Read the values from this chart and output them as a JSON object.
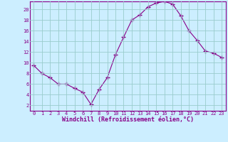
{
  "x": [
    0,
    1,
    2,
    3,
    4,
    5,
    6,
    7,
    8,
    9,
    10,
    11,
    12,
    13,
    14,
    15,
    16,
    17,
    18,
    19,
    20,
    21,
    22,
    23
  ],
  "y": [
    9.5,
    8.0,
    7.2,
    6.0,
    6.0,
    5.2,
    4.5,
    2.2,
    5.0,
    7.2,
    11.5,
    14.8,
    18.0,
    19.0,
    20.5,
    21.2,
    21.5,
    21.0,
    18.8,
    16.0,
    14.2,
    12.2,
    11.8,
    11.0
  ],
  "line_color": "#880088",
  "marker": "+",
  "marker_size": 4,
  "bg_color": "#cceeff",
  "grid_color": "#99cccc",
  "xlabel": "Windchill (Refroidissement éolien,°C)",
  "xlabel_color": "#880088",
  "tick_color": "#880088",
  "xlim": [
    -0.5,
    23.5
  ],
  "ylim": [
    1.0,
    21.5
  ],
  "yticks": [
    2,
    4,
    6,
    8,
    10,
    12,
    14,
    16,
    18,
    20
  ],
  "xticks": [
    0,
    1,
    2,
    3,
    4,
    5,
    6,
    7,
    8,
    9,
    10,
    11,
    12,
    13,
    14,
    15,
    16,
    17,
    18,
    19,
    20,
    21,
    22,
    23
  ],
  "spine_color": "#880088",
  "tick_fontsize": 5.0,
  "xlabel_fontsize": 6.0
}
